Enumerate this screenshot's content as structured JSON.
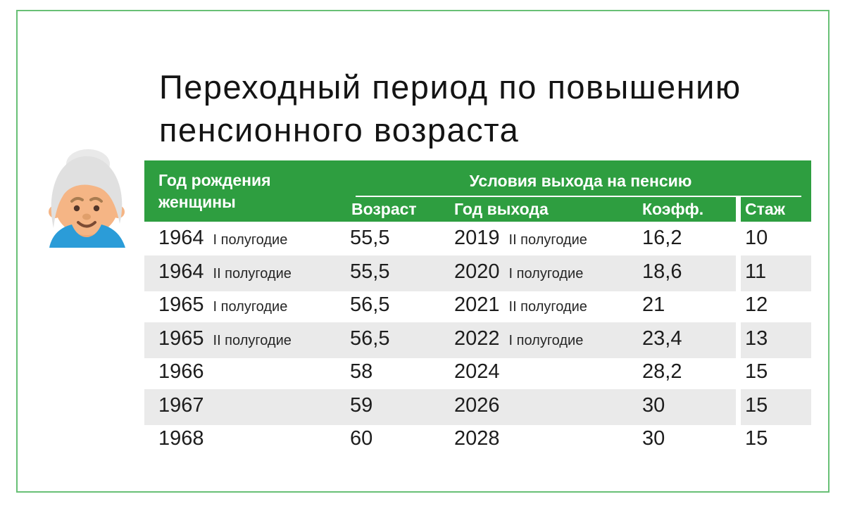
{
  "page": {
    "title": "Переходный период по повышению пенсионного возраста"
  },
  "colors": {
    "frame_border": "#68c076",
    "header_green": "#2e9e40",
    "row_stripe": "#eaeaea",
    "text_dark": "#1d1d1d",
    "header_text": "#ffffff"
  },
  "illustration": {
    "name": "elderly-woman",
    "colors": {
      "hair": "#e0e0e0",
      "bun": "#e9e9e9",
      "skin": "#f5b585",
      "neck": "#f0a876",
      "shirt": "#2b9cd8",
      "eyes": "#53362a",
      "brows": "#a97c50",
      "nose": "#e09f6b",
      "mouth": "#7c4b33"
    }
  },
  "table": {
    "header": {
      "birth_col": "Год рождения\nженщины",
      "group": "Условия выхода на пенсию",
      "subheaders": [
        "Возраст",
        "Год выхода",
        "Коэфф.",
        "Стаж"
      ]
    },
    "rows": [
      {
        "birth_year": "1964",
        "birth_half": "I полугодие",
        "age": "55,5",
        "exit_year": "2019",
        "exit_half": "II полугодие",
        "coeff": "16,2",
        "experience": "10"
      },
      {
        "birth_year": "1964",
        "birth_half": "II полугодие",
        "age": "55,5",
        "exit_year": "2020",
        "exit_half": "I полугодие",
        "coeff": "18,6",
        "experience": "11"
      },
      {
        "birth_year": "1965",
        "birth_half": "I полугодие",
        "age": "56,5",
        "exit_year": "2021",
        "exit_half": "II полугодие",
        "coeff": "21",
        "experience": "12"
      },
      {
        "birth_year": "1965",
        "birth_half": "II полугодие",
        "age": "56,5",
        "exit_year": "2022",
        "exit_half": "I полугодие",
        "coeff": "23,4",
        "experience": "13"
      },
      {
        "birth_year": "1966",
        "birth_half": "",
        "age": "58",
        "exit_year": "2024",
        "exit_half": "",
        "coeff": "28,2",
        "experience": "15"
      },
      {
        "birth_year": "1967",
        "birth_half": "",
        "age": "59",
        "exit_year": "2026",
        "exit_half": "",
        "coeff": "30",
        "experience": "15"
      },
      {
        "birth_year": "1968",
        "birth_half": "",
        "age": "60",
        "exit_year": "2028",
        "exit_half": "",
        "coeff": "30",
        "experience": "15"
      }
    ]
  },
  "chart_data": {
    "type": "table",
    "title": "Переходный период по повышению пенсионного возраста",
    "column_groups": [
      {
        "label": "Год рождения женщины",
        "span": 1
      },
      {
        "label": "Условия выхода на пенсию",
        "span": 4
      }
    ],
    "columns": [
      "Год рождения женщины",
      "Возраст",
      "Год выхода",
      "Коэфф.",
      "Стаж"
    ],
    "rows": [
      [
        "1964 I полугодие",
        "55,5",
        "2019 II полугодие",
        "16,2",
        "10"
      ],
      [
        "1964 II полугодие",
        "55,5",
        "2020 I полугодие",
        "18,6",
        "11"
      ],
      [
        "1965 I полугодие",
        "56,5",
        "2021 II полугодие",
        "21",
        "12"
      ],
      [
        "1965 II полугодие",
        "56,5",
        "2022 I полугодие",
        "23,4",
        "13"
      ],
      [
        "1966",
        "58",
        "2024",
        "28,2",
        "15"
      ],
      [
        "1967",
        "59",
        "2026",
        "30",
        "15"
      ],
      [
        "1968",
        "60",
        "2028",
        "30",
        "15"
      ]
    ]
  }
}
